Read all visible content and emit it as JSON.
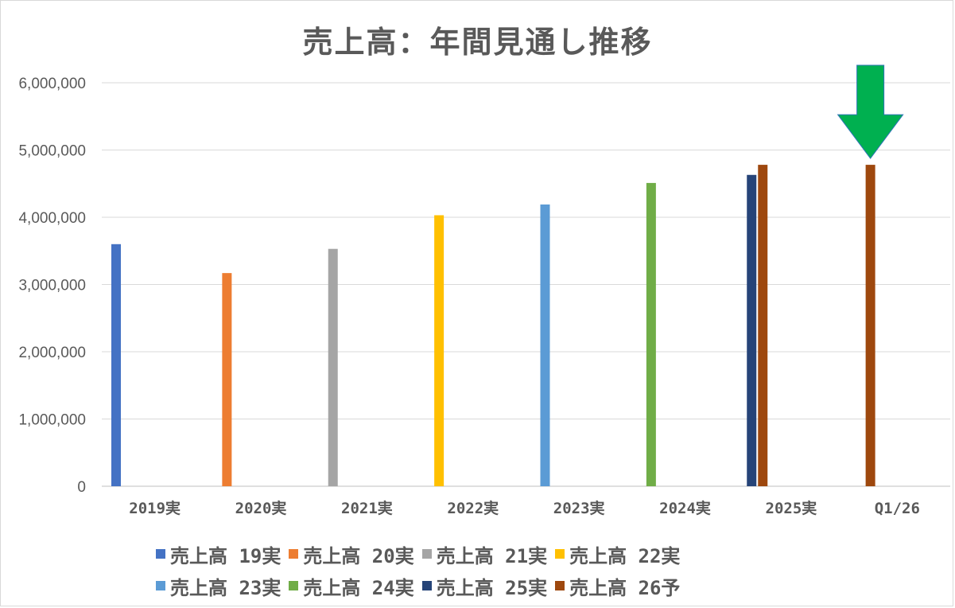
{
  "chart_data": {
    "type": "bar",
    "title": "売上高：年間見通し推移",
    "categories": [
      "2019実",
      "2020実",
      "2021実",
      "2022実",
      "2023実",
      "2024実",
      "2025実",
      "Q1/26"
    ],
    "y_ticks": [
      "0",
      "1,000,000",
      "2,000,000",
      "3,000,000",
      "4,000,000",
      "5,000,000",
      "6,000,000"
    ],
    "ylim": [
      0,
      6000000
    ],
    "grid": true,
    "legend_position": "bottom",
    "series": [
      {
        "name": "売上高 19実",
        "color": "#4472C4",
        "values": [
          3600000,
          null,
          null,
          null,
          null,
          null,
          null,
          null
        ]
      },
      {
        "name": "売上高 20実",
        "color": "#ED7D31",
        "values": [
          null,
          3170000,
          null,
          null,
          null,
          null,
          null,
          null
        ]
      },
      {
        "name": "売上高 21実",
        "color": "#A5A5A5",
        "values": [
          null,
          null,
          3530000,
          null,
          null,
          null,
          null,
          null
        ]
      },
      {
        "name": "売上高 22実",
        "color": "#FFC000",
        "values": [
          null,
          null,
          null,
          4030000,
          null,
          null,
          null,
          null
        ]
      },
      {
        "name": "売上高 23実",
        "color": "#5B9BD5",
        "values": [
          null,
          null,
          null,
          null,
          4190000,
          null,
          null,
          null
        ]
      },
      {
        "name": "売上高 24実",
        "color": "#70AD47",
        "values": [
          null,
          null,
          null,
          null,
          null,
          4510000,
          null,
          null
        ]
      },
      {
        "name": "売上高 25実",
        "color": "#264478",
        "values": [
          null,
          null,
          null,
          null,
          null,
          null,
          4630000,
          null
        ]
      },
      {
        "name": "売上高 26予",
        "color": "#9E480E",
        "values": [
          null,
          null,
          null,
          null,
          null,
          null,
          4780000,
          4780000
        ]
      }
    ],
    "annotation": {
      "type": "down-arrow",
      "color": "#00B050",
      "target_category": "Q1/26"
    }
  }
}
